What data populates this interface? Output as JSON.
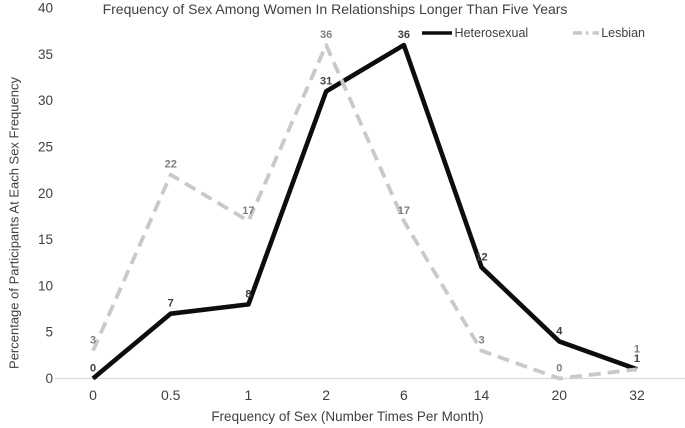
{
  "chart_data": {
    "type": "line",
    "title": "Frequency of Sex Among Women In Relationships Longer Than Five Years",
    "xlabel": "Frequency of Sex (Number Times Per Month)",
    "ylabel": "Percentage of Participants At Each Sex Frequency",
    "categories": [
      "0",
      "0.5",
      "1",
      "2",
      "6",
      "14",
      "20",
      "32"
    ],
    "series": [
      {
        "name": "Heterosexual",
        "values": [
          0,
          7,
          8,
          31,
          36,
          12,
          4,
          1
        ],
        "color": "#0d0d0d",
        "line_style": "solid",
        "label_color": "#404040"
      },
      {
        "name": "Lesbian",
        "values": [
          3,
          22,
          17,
          36,
          17,
          3,
          0,
          1
        ],
        "color": "#c9c9c9",
        "line_style": "dashed",
        "label_color": "#7f7f7f"
      }
    ],
    "ylim": [
      0,
      40
    ],
    "yticks": [
      0,
      5,
      10,
      15,
      20,
      25,
      30,
      35,
      40
    ],
    "grid": false,
    "data_labels": true,
    "legend_position": "top-right",
    "axis_line_color": "#d9d9d9",
    "text_color": "#404040",
    "background_color": "#ffffff"
  }
}
